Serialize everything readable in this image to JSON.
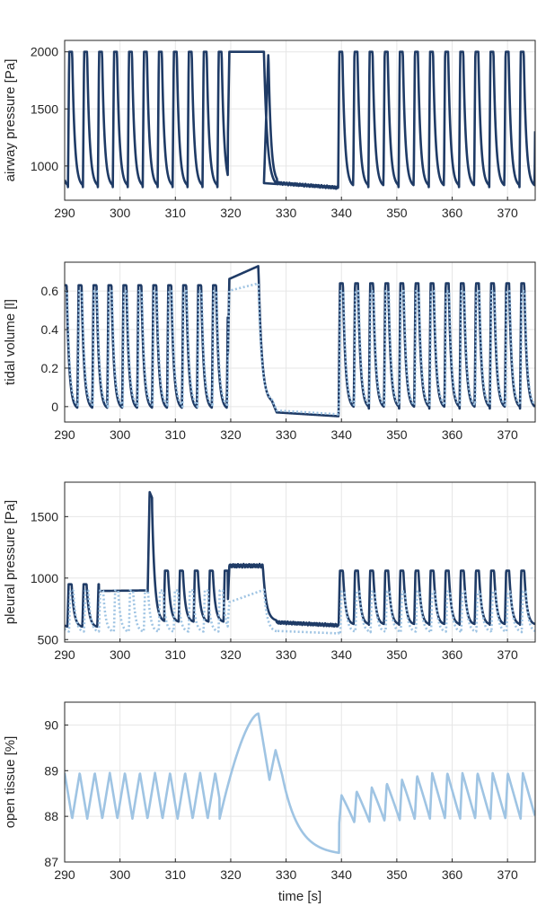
{
  "colors": {
    "dark": "#1f3b66",
    "light": "#9fc4e3",
    "grid": "#e6e6e6",
    "frame": "#262626"
  },
  "chart_data": [
    {
      "type": "line",
      "ylabel": "airway pressure [Pa]",
      "xlabel": "",
      "xlim": [
        290,
        375
      ],
      "ylim": [
        700,
        2100
      ],
      "xticks": [
        290,
        300,
        310,
        320,
        330,
        340,
        350,
        360,
        370
      ],
      "yticks": [
        1000,
        1500,
        2000
      ],
      "ytick_labels": [
        "1000",
        "1500",
        "2000"
      ],
      "grid": true,
      "series": [
        {
          "color": "dark",
          "style": "solid",
          "segments": [
            {
              "kind": "resp",
              "x0": 290,
              "x1": 319.5,
              "period": 2.7,
              "phase": 290.6,
              "top": 2000,
              "bottom": 815
            },
            {
              "kind": "plateau",
              "x0": 319.5,
              "x1": 326,
              "value": 2000,
              "end_to": 820
            },
            {
              "kind": "cycle",
              "x0": 326,
              "x1": 328.4,
              "peak_x": 326.8,
              "top": 2000,
              "bottom": 850
            },
            {
              "kind": "flat",
              "x0": 328.4,
              "x1": 339.4,
              "y0": 850,
              "y1": 810,
              "noise": 12
            },
            {
              "kind": "resp",
              "x0": 339.4,
              "x1": 375,
              "period": 2.73,
              "phase": 339.4,
              "top": 2000,
              "bottom": 815
            }
          ]
        }
      ]
    },
    {
      "type": "line",
      "ylabel": "tidal volume [l]",
      "xlabel": "",
      "xlim": [
        290,
        375
      ],
      "ylim": [
        -0.08,
        0.75
      ],
      "xticks": [
        290,
        300,
        310,
        320,
        330,
        340,
        350,
        360,
        370
      ],
      "yticks": [
        0,
        0.2,
        0.4,
        0.6
      ],
      "ytick_labels": [
        "0",
        "0.2",
        "0.4",
        "0.6"
      ],
      "grid": true,
      "series": [
        {
          "color": "dark",
          "style": "solid",
          "segments": [
            {
              "kind": "resp",
              "x0": 290,
              "x1": 319.5,
              "period": 2.7,
              "phase": 289.6,
              "top": 0.63,
              "bottom": -0.015
            },
            {
              "kind": "plateau",
              "x0": 319.5,
              "x1": 325,
              "value": 0.66,
              "value_end": 0.73,
              "end_to": 0.02
            },
            {
              "kind": "flat",
              "x0": 328.3,
              "x1": 339.5,
              "y0": -0.03,
              "y1": -0.05,
              "noise": 0
            },
            {
              "kind": "resp",
              "x0": 339.5,
              "x1": 375,
              "period": 2.73,
              "phase": 339.5,
              "top": 0.64,
              "bottom": -0.01
            }
          ]
        },
        {
          "color": "light",
          "style": "dotted",
          "segments": [
            {
              "kind": "resp",
              "x0": 290,
              "x1": 319.5,
              "period": 2.7,
              "phase": 289.7,
              "top": 0.6,
              "bottom": 0.0
            },
            {
              "kind": "plateau",
              "x0": 319.5,
              "x1": 325,
              "value": 0.6,
              "value_end": 0.64,
              "end_to": 0.03
            },
            {
              "kind": "flat",
              "x0": 328.3,
              "x1": 339.5,
              "y0": -0.02,
              "y1": -0.04,
              "noise": 0
            },
            {
              "kind": "resp",
              "x0": 339.5,
              "x1": 375,
              "period": 2.73,
              "phase": 339.6,
              "top": 0.6,
              "bottom": 0.0
            }
          ]
        }
      ]
    },
    {
      "type": "line",
      "ylabel": "pleural pressure [Pa]",
      "xlabel": "",
      "xlim": [
        290,
        375
      ],
      "ylim": [
        480,
        1780
      ],
      "xticks": [
        290,
        300,
        310,
        320,
        330,
        340,
        350,
        360,
        370
      ],
      "yticks": [
        500,
        1000,
        1500
      ],
      "ytick_labels": [
        "500",
        "1000",
        "1500"
      ],
      "grid": true,
      "series": [
        {
          "color": "dark",
          "style": "solid",
          "segments": [
            {
              "kind": "resp",
              "x0": 290,
              "x1": 296.2,
              "period": 2.7,
              "phase": 290.5,
              "top": 950,
              "bottom": 600
            },
            {
              "kind": "flat",
              "x0": 296.2,
              "x1": 305,
              "y0": 895,
              "y1": 900,
              "noise": 0
            },
            {
              "kind": "spike",
              "x0": 305,
              "x1": 308,
              "peak": 1700,
              "base": 890,
              "end": 640
            },
            {
              "kind": "resp",
              "x0": 308,
              "x1": 319.5,
              "period": 2.7,
              "phase": 307.9,
              "top": 1060,
              "bottom": 640
            },
            {
              "kind": "plateau",
              "x0": 319.5,
              "x1": 325.8,
              "value": 1100,
              "end_to": 650,
              "noise": 15
            },
            {
              "kind": "flat",
              "x0": 328.3,
              "x1": 339.5,
              "y0": 640,
              "y1": 615,
              "noise": 12
            },
            {
              "kind": "resp",
              "x0": 339.5,
              "x1": 375,
              "period": 2.73,
              "phase": 339.5,
              "top": 1060,
              "bottom": 620
            }
          ]
        },
        {
          "color": "light",
          "style": "dotted",
          "segments": [
            {
              "kind": "resp",
              "x0": 290,
              "x1": 319.5,
              "period": 2.7,
              "phase": 290.8,
              "top": 900,
              "bottom": 560
            },
            {
              "kind": "plateau",
              "x0": 319.5,
              "x1": 326,
              "value": 800,
              "value_end": 905,
              "end_to": 560
            },
            {
              "kind": "flat",
              "x0": 328.3,
              "x1": 339.5,
              "y0": 570,
              "y1": 550,
              "noise": 0
            },
            {
              "kind": "resp",
              "x0": 339.5,
              "x1": 375,
              "period": 2.73,
              "phase": 339.8,
              "top": 890,
              "bottom": 560
            }
          ]
        }
      ]
    },
    {
      "type": "line",
      "ylabel": "open tissue [%]",
      "xlabel": "time [s]",
      "xlim": [
        290,
        375
      ],
      "ylim": [
        87,
        90.5
      ],
      "xticks": [
        290,
        300,
        310,
        320,
        330,
        340,
        350,
        360,
        370
      ],
      "yticks": [
        87,
        88,
        89,
        90
      ],
      "ytick_labels": [
        "87",
        "88",
        "89",
        "90"
      ],
      "grid": true,
      "series": [
        {
          "color": "light",
          "style": "solid",
          "segments": [
            {
              "kind": "zigzag",
              "x0": 290,
              "x1": 318,
              "period": 2.72,
              "phase": 290,
              "top": 88.95,
              "bottom": 87.95
            },
            {
              "kind": "rise",
              "x0": 318,
              "x1": 325,
              "y0": 87.95,
              "y1": 90.25
            },
            {
              "kind": "bump",
              "x0": 325,
              "x1": 329.3,
              "y0": 90.25,
              "dip": 88.8,
              "peak": 89.45,
              "end": 88.9
            },
            {
              "kind": "decay",
              "x0": 329.3,
              "x1": 339.6,
              "y0": 88.9,
              "y1": 87.2
            },
            {
              "kind": "recover",
              "x0": 339.6,
              "x1": 375,
              "period": 2.73,
              "phase": 339.6,
              "top_start": 88.45,
              "top_end": 88.95,
              "bottom_start": 87.85,
              "bottom_end": 87.95
            }
          ]
        }
      ]
    }
  ]
}
